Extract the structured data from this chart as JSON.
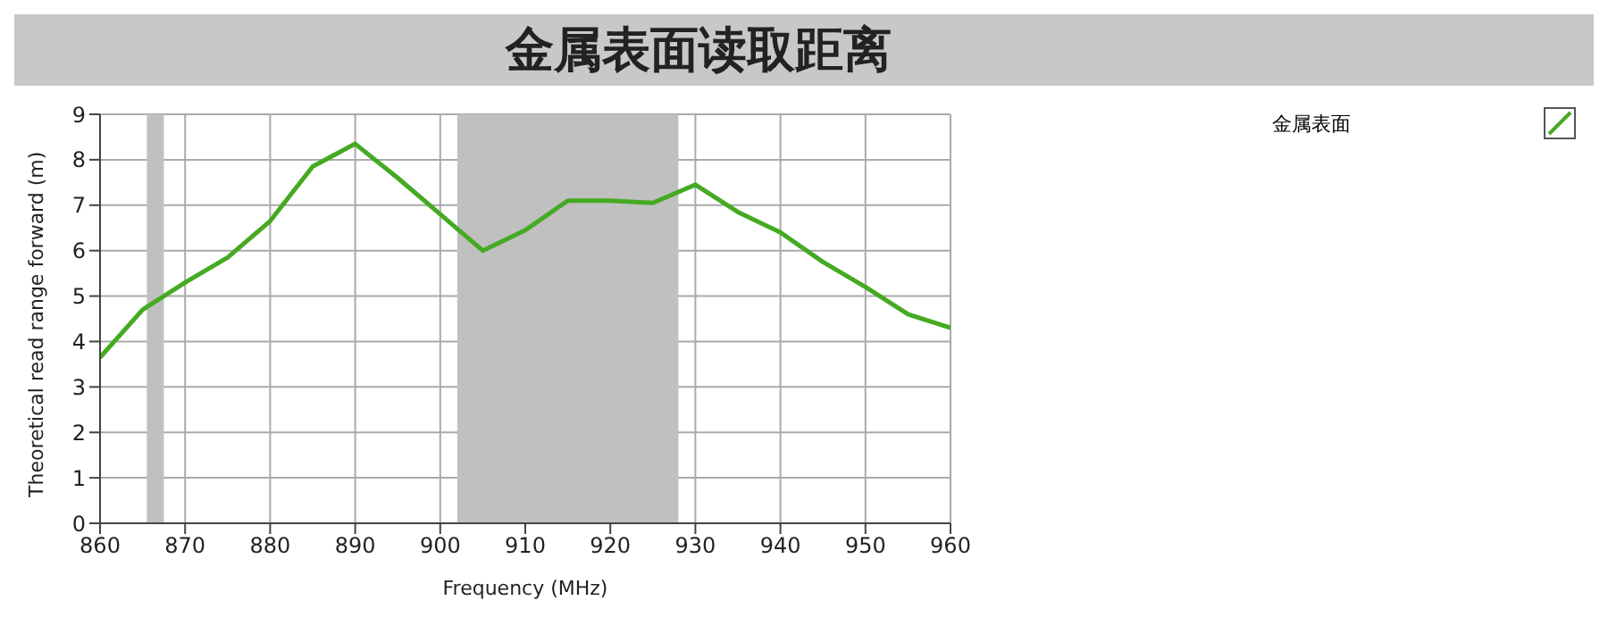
{
  "chart_data": {
    "type": "line",
    "title": "金属表面读取距离",
    "xlabel": "Frequency (MHz)",
    "ylabel": "Theoretical read range forward (m)",
    "x": [
      860,
      865,
      870,
      875,
      880,
      885,
      890,
      895,
      900,
      905,
      910,
      915,
      920,
      925,
      930,
      935,
      940,
      945,
      950,
      955,
      960
    ],
    "series": [
      {
        "name": "金属表面",
        "color": "#44aa22",
        "values": [
          3.65,
          4.7,
          5.3,
          5.85,
          6.65,
          7.85,
          8.35,
          7.6,
          6.8,
          6.0,
          6.45,
          7.1,
          7.1,
          7.05,
          7.45,
          6.85,
          6.4,
          5.75,
          5.2,
          4.6,
          4.3
        ]
      }
    ],
    "bands": [
      {
        "axis": "x",
        "from": 865.5,
        "to": 867.5,
        "color": "#c0c0c0"
      },
      {
        "axis": "x",
        "from": 902,
        "to": 928,
        "color": "#c0c0c0"
      }
    ],
    "xlim": [
      860,
      960
    ],
    "xticks": [
      860,
      870,
      880,
      890,
      900,
      910,
      920,
      930,
      940,
      950,
      960
    ],
    "ylim": [
      0,
      9
    ],
    "yticks": [
      0,
      1,
      2,
      3,
      4,
      5,
      6,
      7,
      8,
      9
    ],
    "grid": true,
    "legend": "top right",
    "marker": "none",
    "line_style": "solid"
  }
}
